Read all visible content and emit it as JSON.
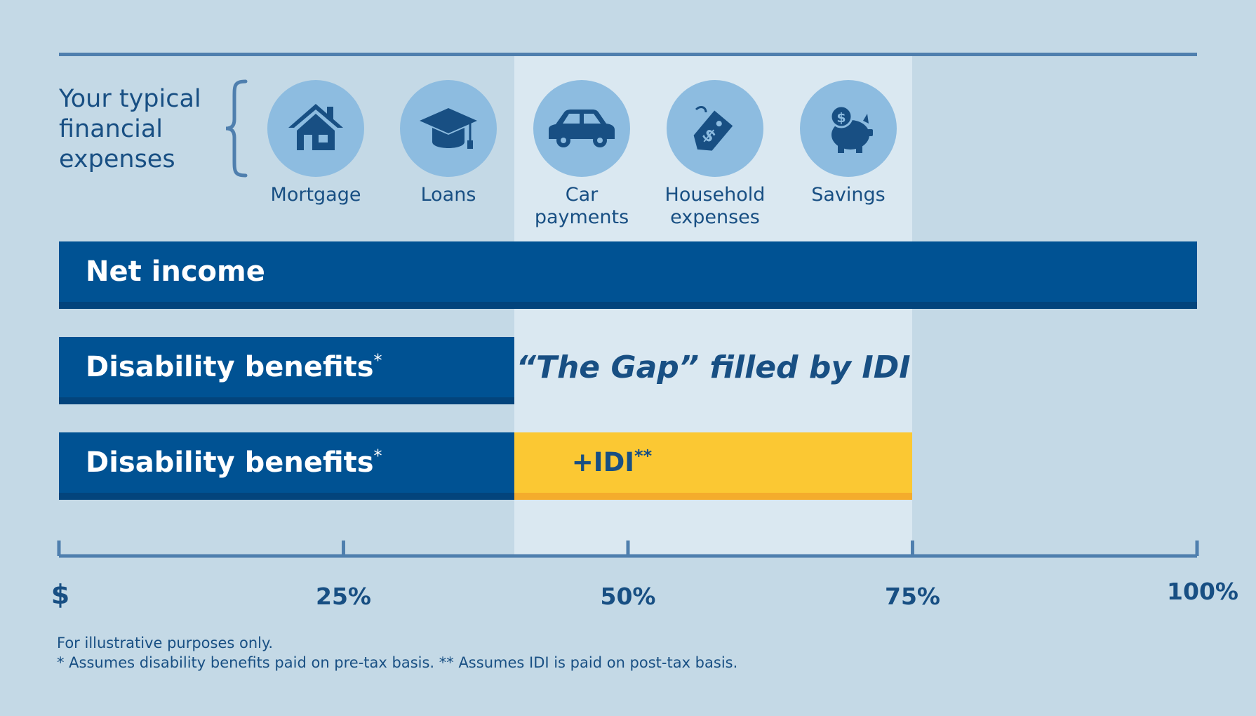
{
  "chart_data": {
    "type": "bar",
    "x_axis": {
      "range": [
        0,
        100
      ],
      "ticks": [
        {
          "value": 0,
          "label": "$"
        },
        {
          "value": 25,
          "label": "25%"
        },
        {
          "value": 50,
          "label": "50%"
        },
        {
          "value": 75,
          "label": "75%"
        },
        {
          "value": 100,
          "label": "100%"
        }
      ]
    },
    "gap_range": [
      40,
      75
    ],
    "rows": [
      {
        "label": "Net income",
        "segments": [
          {
            "name": "Net income",
            "from": 0,
            "to": 100,
            "color": "#005293"
          }
        ]
      },
      {
        "label": "Disability benefits",
        "marker": "*",
        "segments": [
          {
            "name": "Disability benefits",
            "from": 0,
            "to": 40,
            "color": "#005293"
          }
        ],
        "annotation": "“The Gap” filled by IDI"
      },
      {
        "label": "Disability benefits",
        "marker": "*",
        "segments": [
          {
            "name": "Disability benefits",
            "from": 0,
            "to": 40,
            "color": "#005293"
          },
          {
            "name": "IDI",
            "from": 40,
            "to": 75,
            "color": "#fbc833",
            "label": "+IDI",
            "marker": "**"
          }
        ]
      }
    ]
  },
  "expenses": {
    "title": "Your typical financial expenses",
    "items": [
      {
        "label": "Mortgage",
        "icon": "house-icon"
      },
      {
        "label": "Loans",
        "icon": "graduation-cap-icon"
      },
      {
        "label": "Car\npayments",
        "icon": "car-icon"
      },
      {
        "label": "Household\nexpenses",
        "icon": "price-tag-icon"
      },
      {
        "label": "Savings",
        "icon": "piggy-bank-icon"
      }
    ]
  },
  "footnotes": {
    "line1": "For illustrative purposes only.",
    "line2": "* Assumes disability benefits paid on pre-tax basis.  ** Assumes IDI is paid on post-tax basis."
  },
  "colors": {
    "background": "#c4d9e6",
    "gap_zone": "#dae8f1",
    "dark_blue": "#005293",
    "yellow": "#fbc833",
    "icon_circle": "#8dbce0",
    "text": "#184f83"
  }
}
